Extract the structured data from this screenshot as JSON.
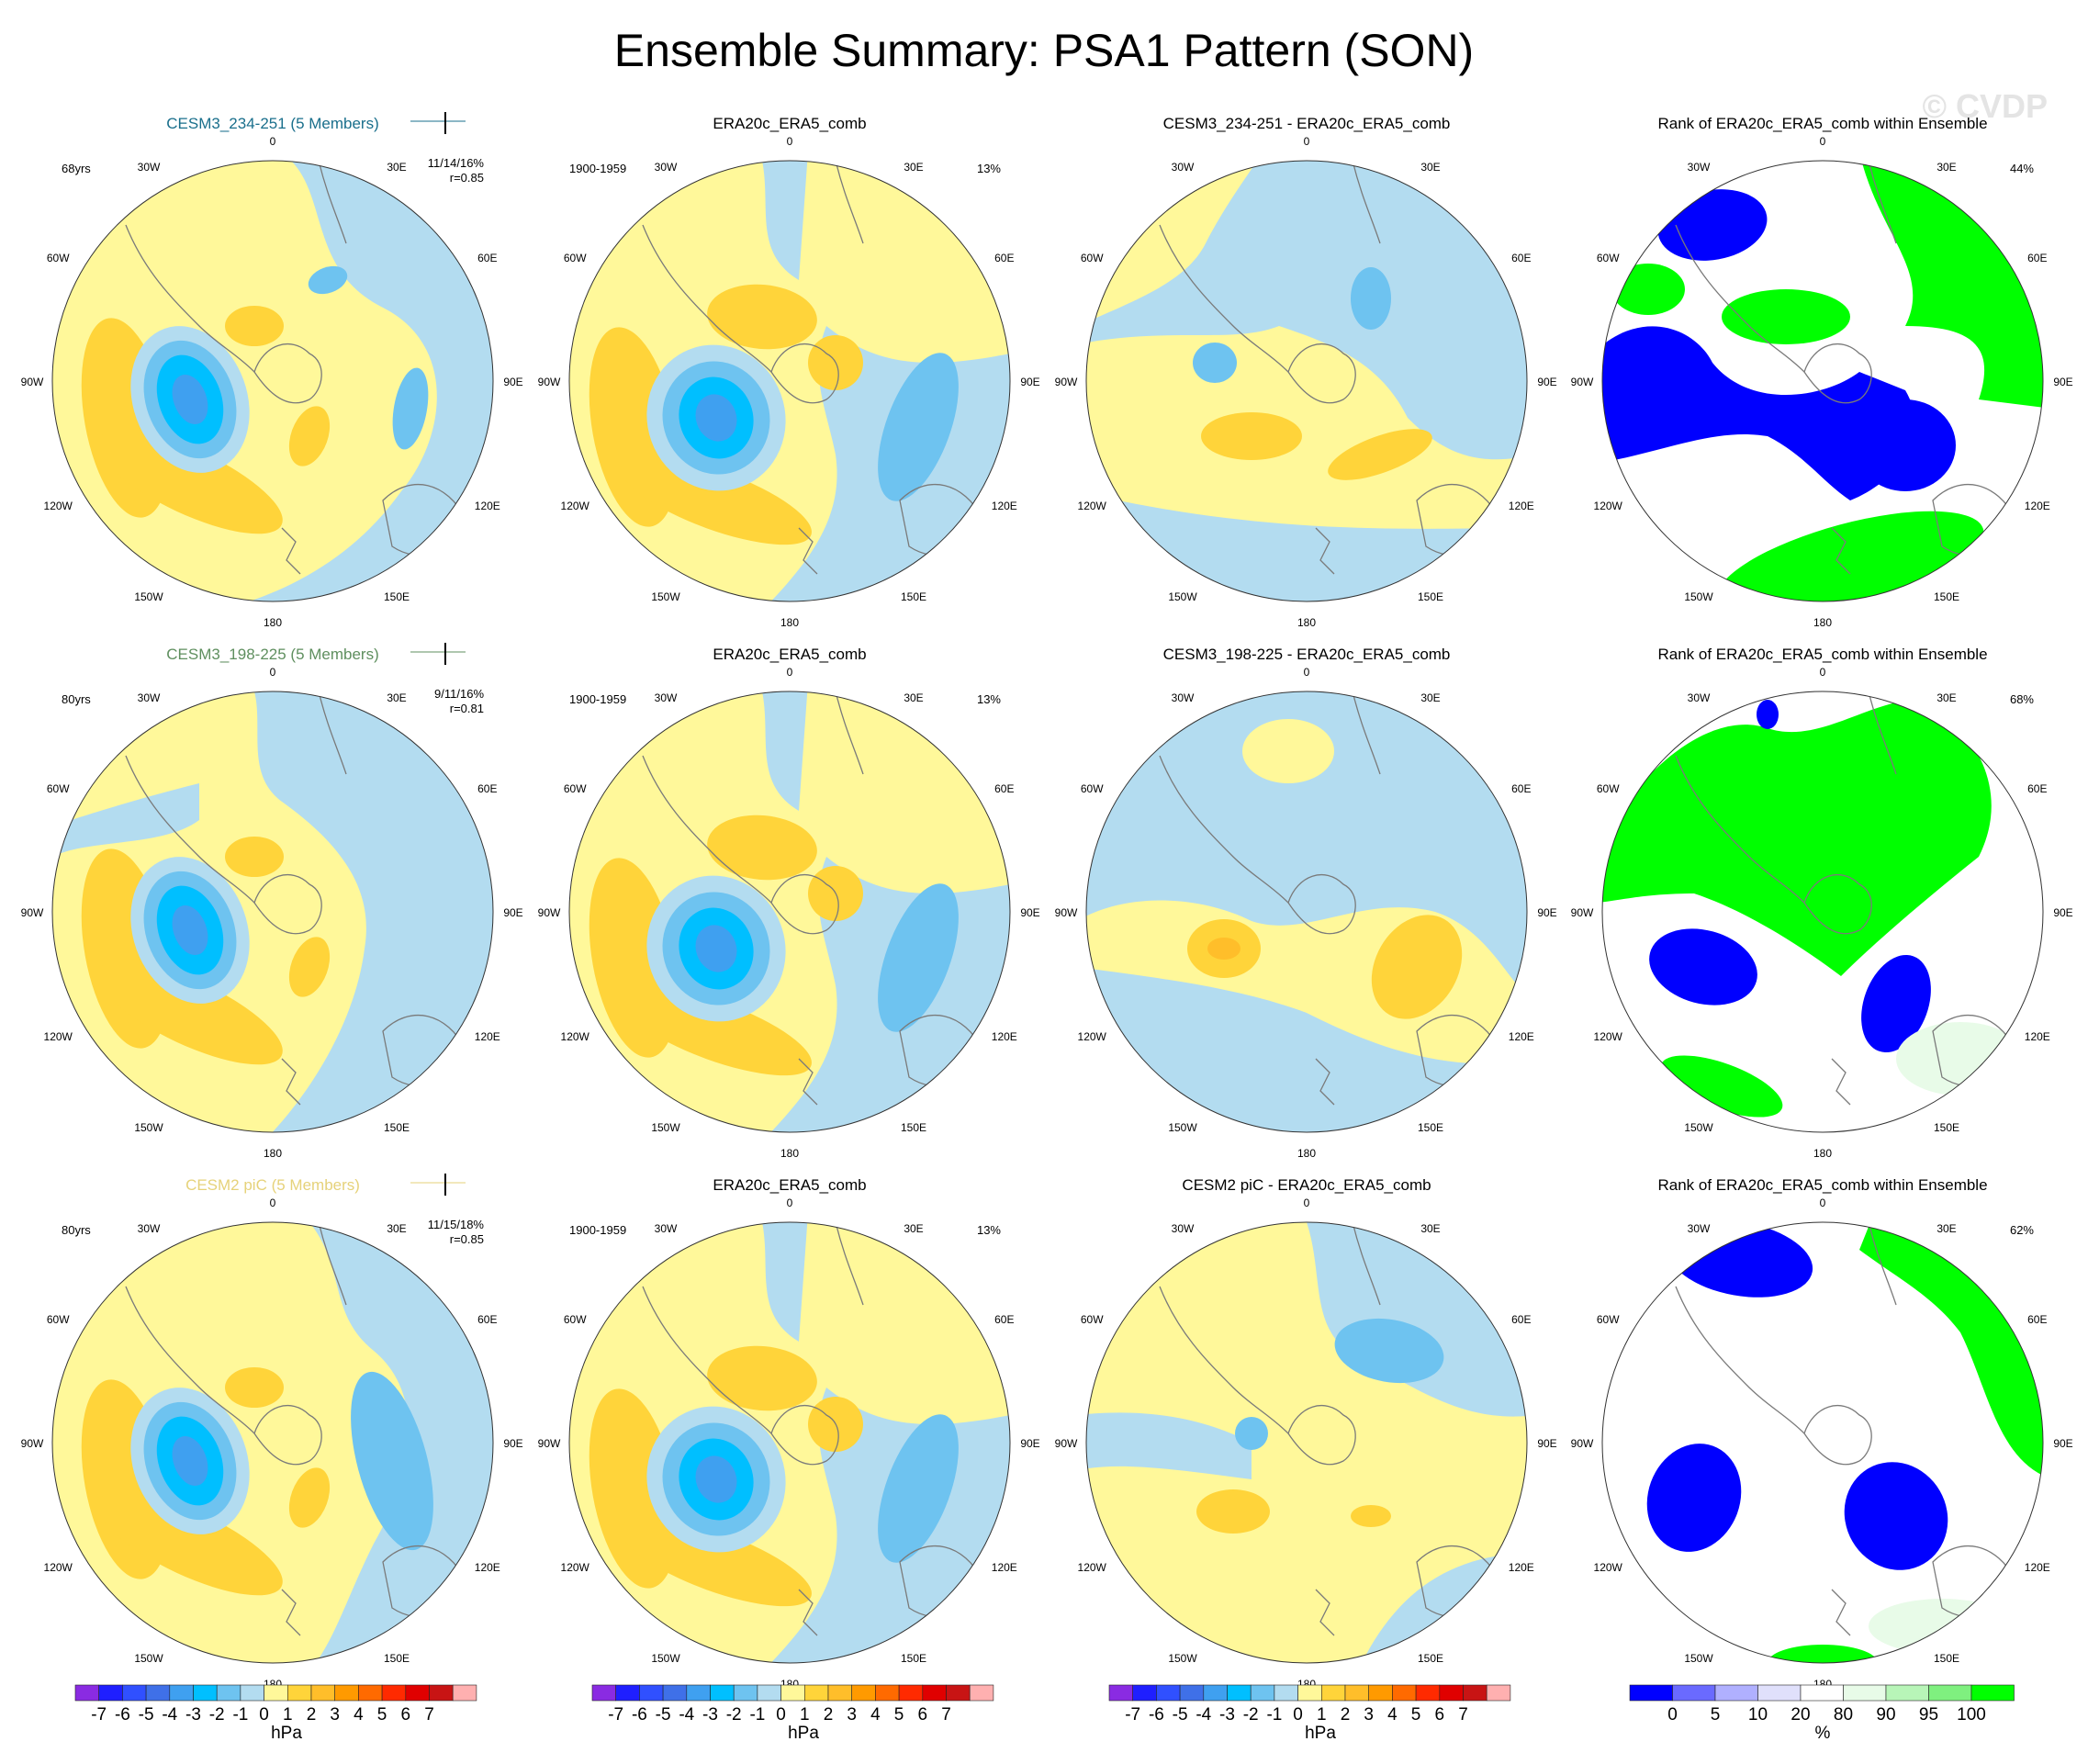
{
  "watermark": "© CVDP",
  "chart_data": {
    "type": "map",
    "title": "Ensemble Summary: PSA1 Pattern (SON)",
    "units_label": "hPa",
    "rank_units_label": "%",
    "diff_levels": [
      "-7",
      "-6",
      "-5",
      "-4",
      "-3",
      "-2",
      "-1",
      "0",
      "1",
      "2",
      "3",
      "4",
      "5",
      "6",
      "7"
    ],
    "diff_colors": [
      "#8a2be2",
      "#1f1fff",
      "#3050ff",
      "#3f70e8",
      "#3fa0f0",
      "#00bfff",
      "#6ec3f0",
      "#b3dcf0",
      "#fff89a",
      "#ffd43a",
      "#ffbe2a",
      "#ff9a00",
      "#ff6a00",
      "#ff2a00",
      "#e00000",
      "#c81414",
      "#ffb0b0"
    ],
    "rank_levels": [
      "0",
      "5",
      "10",
      "20",
      "80",
      "90",
      "95",
      "100"
    ],
    "rank_colors": [
      "#0000ff",
      "#6a6aff",
      "#b0b0ff",
      "#e0e0fb",
      "#ffffff",
      "#e8fbe8",
      "#b8f5b8",
      "#7ff07f",
      "#00ff00"
    ],
    "longitude_labels": [
      "0",
      "30E",
      "60E",
      "90E",
      "120E",
      "150E",
      "180",
      "150W",
      "120W",
      "90W",
      "60W",
      "30W"
    ],
    "rows": [
      {
        "model": "CESM3_234-251 (5 Members)",
        "model_color": "#1a6f8c",
        "model_years": "68yrs",
        "stats": "11/14/16%",
        "pattern_corr": "r=0.85",
        "obs_title": "ERA20c_ERA5_comb",
        "obs_period": "1900-1959",
        "obs_pct": "13%",
        "diff_title": "CESM3_234-251 - ERA20c_ERA5_comb",
        "rank_title": "Rank of ERA20c_ERA5_comb within Ensemble",
        "rank_pct": "44%"
      },
      {
        "model": "CESM3_198-225 (5 Members)",
        "model_color": "#5f8f5f",
        "model_years": "80yrs",
        "stats": "9/11/16%",
        "pattern_corr": "r=0.81",
        "obs_title": "ERA20c_ERA5_comb",
        "obs_period": "1900-1959",
        "obs_pct": "13%",
        "diff_title": "CESM3_198-225 - ERA20c_ERA5_comb",
        "rank_title": "Rank of ERA20c_ERA5_comb within Ensemble",
        "rank_pct": "68%"
      },
      {
        "model": "CESM2 piC (5 Members)",
        "model_color": "#e6d27a",
        "model_years": "80yrs",
        "stats": "11/15/18%",
        "pattern_corr": "r=0.85",
        "obs_title": "ERA20c_ERA5_comb",
        "obs_period": "1900-1959",
        "obs_pct": "13%",
        "diff_title": "CESM2 piC - ERA20c_ERA5_comb",
        "rank_title": "Rank of ERA20c_ERA5_comb within Ensemble",
        "rank_pct": "62%"
      }
    ]
  }
}
